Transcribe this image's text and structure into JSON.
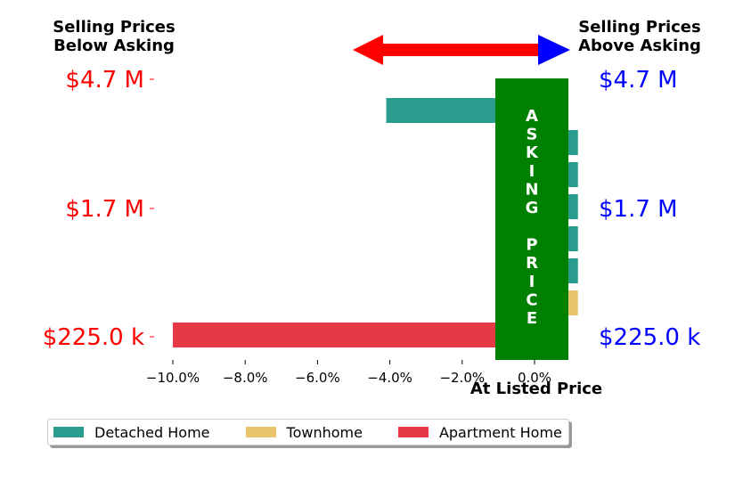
{
  "header": {
    "left": "Selling Prices\nBelow Asking",
    "right": "Selling Prices\nAbove Asking",
    "bottom": "At Listed Price",
    "asking_label": "ASKING\n\nPRICE"
  },
  "colors": {
    "below": "#ff0000",
    "above": "#0000ff",
    "asking": "#008000",
    "arrow_left": "#ff0000",
    "arrow_right": "#0000ff"
  },
  "chart_data": {
    "type": "bar",
    "orientation": "horizontal",
    "x_ticks": [
      "−10.0%",
      "−8.0%",
      "−6.0%",
      "−4.0%",
      "−2.0%",
      "0.0%"
    ],
    "x_tick_values": [
      -10,
      -8,
      -6,
      -4,
      -2,
      0
    ],
    "xlim": [
      -10.0,
      1.0
    ],
    "y_left_ticks": [
      "$4.7 M",
      "$1.7 M",
      "$225.0 k"
    ],
    "y_right_ticks": [
      "$4.7 M",
      "$1.7 M",
      "$225.0 k"
    ],
    "series": [
      {
        "name": "Detached Home",
        "color": "#2a9d8f"
      },
      {
        "name": "Townhome",
        "color": "#e9c46a"
      },
      {
        "name": "Apartment Home",
        "color": "#e63946"
      }
    ],
    "bars": [
      {
        "series": "Detached Home",
        "value": -4.1
      },
      {
        "series": "Detached Home",
        "value": 1.2
      },
      {
        "series": "Detached Home",
        "value": 1.2
      },
      {
        "series": "Detached Home",
        "value": 1.2
      },
      {
        "series": "Detached Home",
        "value": 1.2
      },
      {
        "series": "Detached Home",
        "value": 1.2
      },
      {
        "series": "Townhome",
        "value": 1.2
      },
      {
        "series": "Apartment Home",
        "value": -10.0
      }
    ]
  }
}
